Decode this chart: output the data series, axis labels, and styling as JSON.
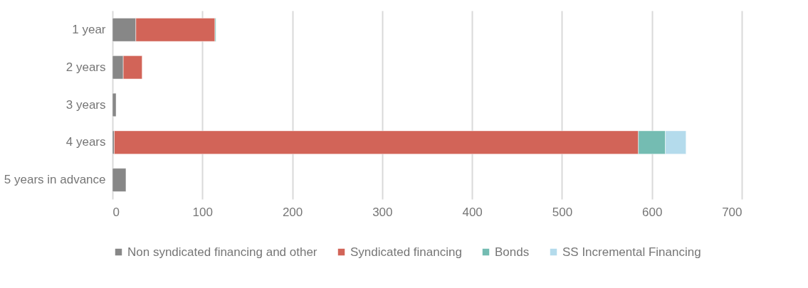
{
  "chart_data": {
    "type": "bar",
    "orientation": "horizontal",
    "stacked": true,
    "categories": [
      "1 year",
      "2 years",
      "3 years",
      "4 years",
      "5 years in advance"
    ],
    "series": [
      {
        "name": "Non syndicated financing and other",
        "color": "#878787",
        "values": [
          26,
          12,
          4,
          2,
          15
        ]
      },
      {
        "name": "Syndicated financing",
        "color": "#d26458",
        "values": [
          88,
          21,
          null,
          583,
          null
        ]
      },
      {
        "name": "Bonds",
        "color": "#74bcb2",
        "values": [
          1,
          null,
          null,
          30,
          null
        ]
      },
      {
        "name": "SS Incremental Financing",
        "color": "#b4dbec",
        "values": [
          null,
          null,
          null,
          23,
          null
        ]
      }
    ],
    "xlim": [
      0,
      700
    ],
    "xticks": [
      0,
      100,
      200,
      300,
      400,
      500,
      600,
      700
    ],
    "grid": "x",
    "legend": "bottom"
  }
}
